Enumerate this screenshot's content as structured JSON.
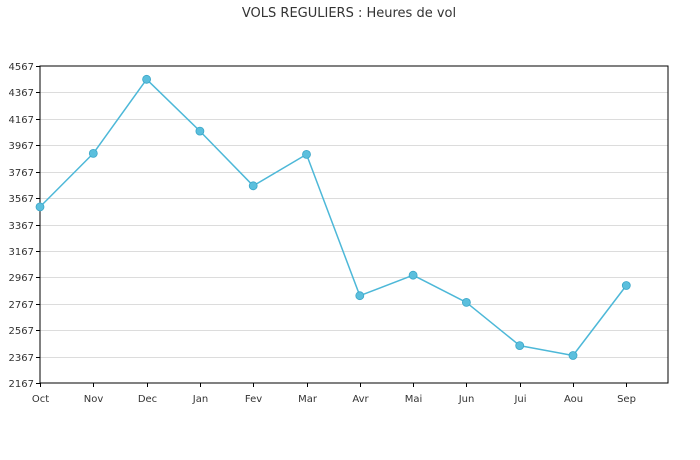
{
  "chart_data": {
    "type": "line",
    "title": "VOLS REGULIERS : Heures de vol",
    "xlabel": "",
    "ylabel": "",
    "categories": [
      "Oct",
      "Nov",
      "Dec",
      "Jan",
      "Fev",
      "Mar",
      "Avr",
      "Mai",
      "Jun",
      "Jui",
      "Aou",
      "Sep"
    ],
    "series": [
      {
        "values": [
          3500,
          3905,
          4466,
          4074,
          3660,
          3898,
          2828,
          2983,
          2777,
          2450,
          2375,
          2905
        ]
      }
    ],
    "yticks": [
      2167,
      2367,
      2567,
      2767,
      2967,
      3167,
      3367,
      3567,
      3767,
      3967,
      4167,
      4367,
      4567
    ],
    "ylim": [
      2167,
      4567
    ],
    "grid": true,
    "legend": "none",
    "colors": {
      "line": "#4db8d8",
      "marker": "#5bbfdd",
      "grid": "#dcdcdc",
      "frame": "#000000"
    }
  }
}
